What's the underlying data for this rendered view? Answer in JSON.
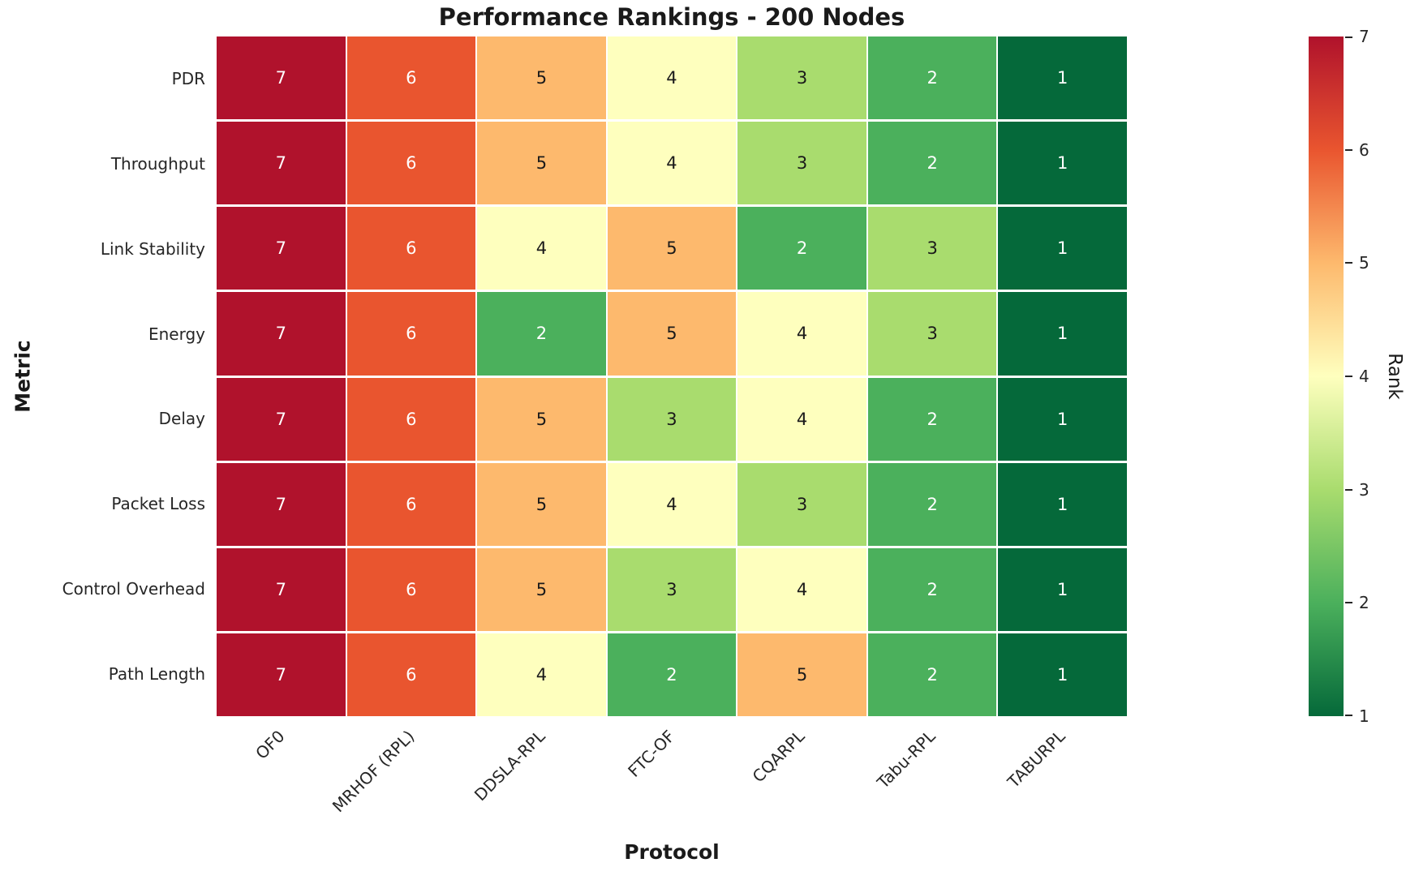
{
  "title": "Performance Rankings - 200 Nodes",
  "xlabel": "Protocol",
  "ylabel": "Metric",
  "colorbar": {
    "label": "Rank",
    "ticks": [
      7,
      6,
      5,
      4,
      3,
      2,
      1
    ]
  },
  "chart_data": {
    "type": "heatmap",
    "title": "Performance Rankings - 200 Nodes",
    "xlabel": "Protocol",
    "ylabel": "Metric",
    "columns": [
      "OF0",
      "MRHOF (RPL)",
      "DDSLA-RPL",
      "FTC-OF",
      "CQARPL",
      "Tabu-RPL",
      "TABURPL"
    ],
    "rows": [
      "PDR",
      "Throughput",
      "Link Stability",
      "Energy",
      "Delay",
      "Packet Loss",
      "Control Overhead",
      "Path Length"
    ],
    "values": [
      [
        7,
        6,
        5,
        4,
        3,
        2,
        1
      ],
      [
        7,
        6,
        5,
        4,
        3,
        2,
        1
      ],
      [
        7,
        6,
        4,
        5,
        2,
        3,
        1
      ],
      [
        7,
        6,
        2,
        5,
        4,
        3,
        1
      ],
      [
        7,
        6,
        5,
        3,
        4,
        2,
        1
      ],
      [
        7,
        6,
        5,
        4,
        3,
        2,
        1
      ],
      [
        7,
        6,
        5,
        3,
        4,
        2,
        1
      ],
      [
        7,
        6,
        4,
        2,
        5,
        2,
        1
      ]
    ],
    "value_range": [
      1,
      7
    ],
    "colormap": "RdYlGn_r",
    "colorbar_label": "Rank",
    "colorbar_ticks": [
      7,
      6,
      5,
      4,
      3,
      2,
      1
    ],
    "grid_line_color": "#ffffff",
    "rank_colors": {
      "1": "#05693a",
      "2": "#4bb05c",
      "3": "#a9dc6e",
      "4": "#feffbe",
      "5": "#fdb96d",
      "6": "#e9552f",
      "7": "#b0122c"
    },
    "rank_text_colors": {
      "1": "#ffffff",
      "2": "#ffffff",
      "3": "#1a1a1a",
      "4": "#1a1a1a",
      "5": "#1a1a1a",
      "6": "#ffffff",
      "7": "#ffffff"
    },
    "legend_position": "right-colorbar",
    "grid": false
  }
}
